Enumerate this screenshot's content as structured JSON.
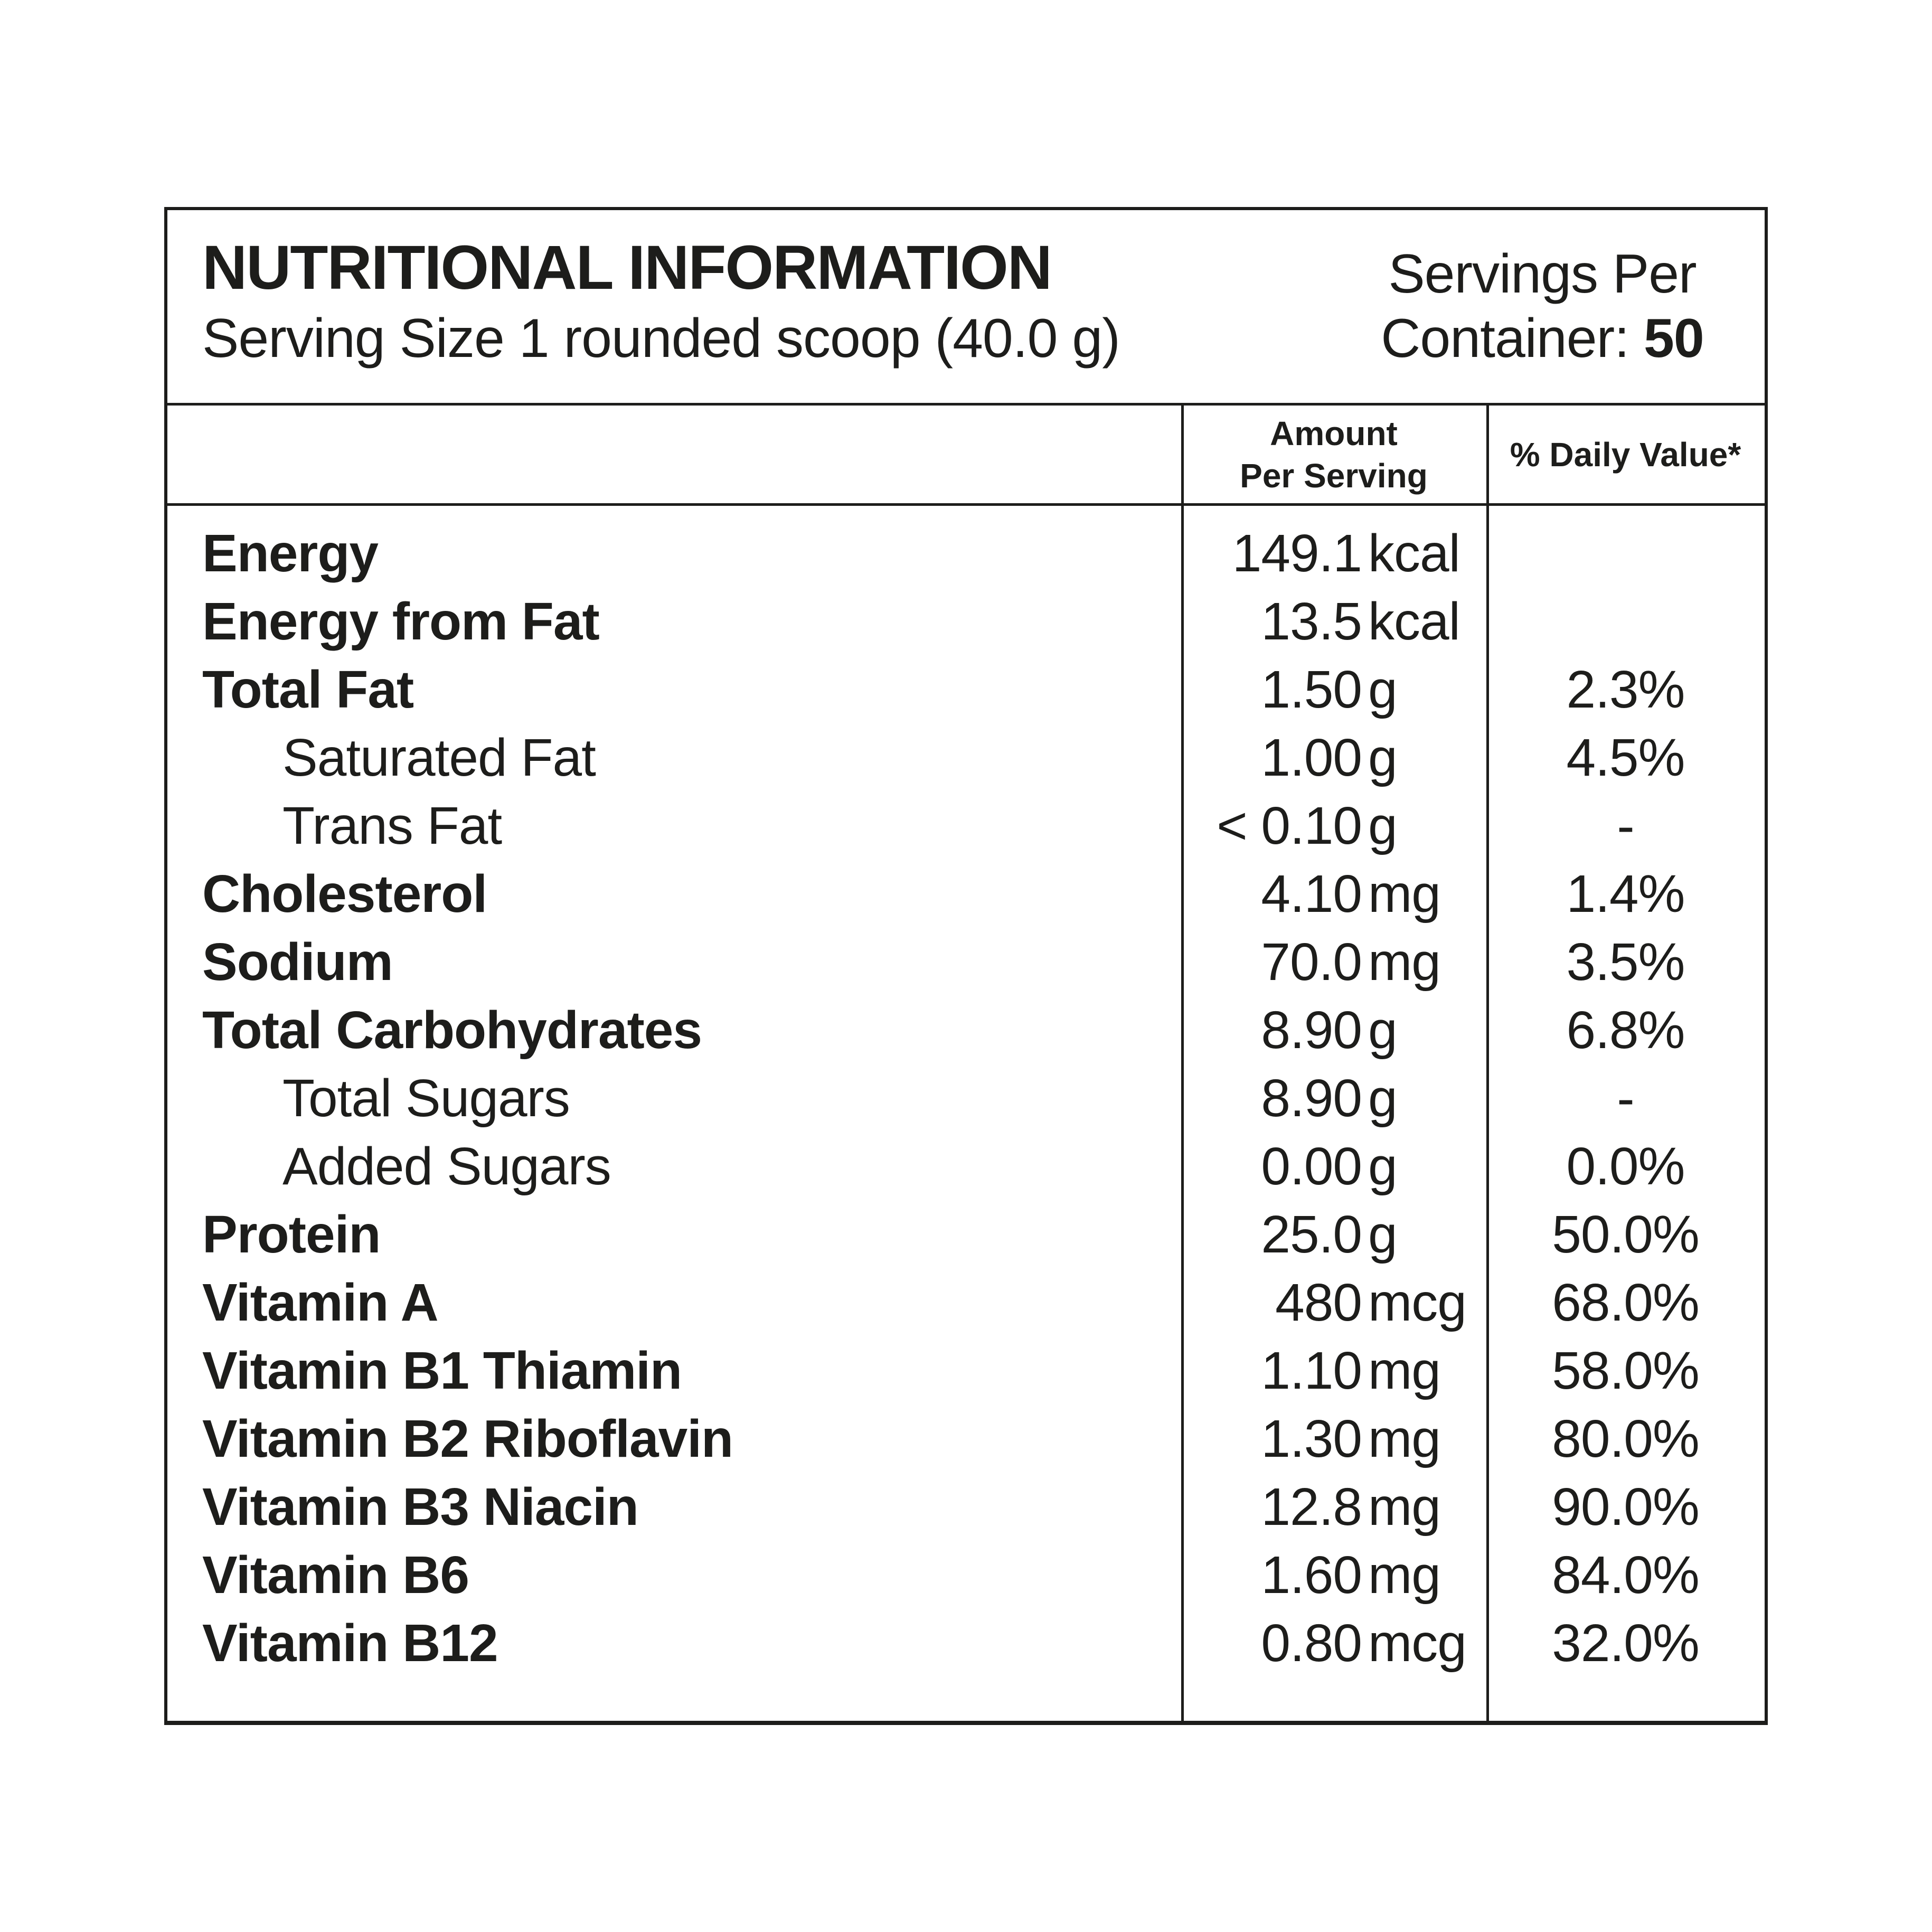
{
  "colors": {
    "text": "#1d1d1b",
    "border": "#1d1d1b",
    "background": "#ffffff"
  },
  "header": {
    "title": "NUTRITIONAL INFORMATION",
    "serving_size": "Serving Size 1 rounded scoop (40.0 g)",
    "servings_per_line1": "Servings Per",
    "servings_per_line2_prefix": "Container: ",
    "servings_count": "50"
  },
  "columns": {
    "amount_line1": "Amount",
    "amount_line2": "Per Serving",
    "daily_value": "% Daily Value*"
  },
  "rows": [
    {
      "name": "Energy",
      "bold": true,
      "indent": false,
      "num": "149.1",
      "unit": "kcal",
      "dv": ""
    },
    {
      "name": "Energy from Fat",
      "bold": true,
      "indent": false,
      "num": "13.5",
      "unit": "kcal",
      "dv": ""
    },
    {
      "name": "Total Fat",
      "bold": true,
      "indent": false,
      "num": "1.50",
      "unit": "g",
      "dv": "2.3%"
    },
    {
      "name": "Saturated Fat",
      "bold": false,
      "indent": true,
      "num": "1.00",
      "unit": "g",
      "dv": "4.5%"
    },
    {
      "name": "Trans Fat",
      "bold": false,
      "indent": true,
      "num": "< 0.10",
      "unit": "g",
      "dv": "-"
    },
    {
      "name": "Cholesterol",
      "bold": true,
      "indent": false,
      "num": "4.10",
      "unit": "mg",
      "dv": "1.4%"
    },
    {
      "name": "Sodium",
      "bold": true,
      "indent": false,
      "num": "70.0",
      "unit": "mg",
      "dv": "3.5%"
    },
    {
      "name": "Total Carbohydrates",
      "bold": true,
      "indent": false,
      "num": "8.90",
      "unit": "g",
      "dv": "6.8%"
    },
    {
      "name": "Total Sugars",
      "bold": false,
      "indent": true,
      "num": "8.90",
      "unit": "g",
      "dv": "-"
    },
    {
      "name": "Added Sugars",
      "bold": false,
      "indent": true,
      "num": "0.00",
      "unit": "g",
      "dv": "0.0%"
    },
    {
      "name": "Protein",
      "bold": true,
      "indent": false,
      "num": "25.0",
      "unit": "g",
      "dv": "50.0%"
    },
    {
      "name": "Vitamin A",
      "bold": true,
      "indent": false,
      "num": "480",
      "unit": "mcg",
      "dv": "68.0%"
    },
    {
      "name": "Vitamin B1 Thiamin",
      "bold": true,
      "indent": false,
      "num": "1.10",
      "unit": "mg",
      "dv": "58.0%"
    },
    {
      "name": "Vitamin B2 Riboflavin",
      "bold": true,
      "indent": false,
      "num": "1.30",
      "unit": "mg",
      "dv": "80.0%"
    },
    {
      "name": "Vitamin B3 Niacin",
      "bold": true,
      "indent": false,
      "num": "12.8",
      "unit": "mg",
      "dv": "90.0%"
    },
    {
      "name": "Vitamin B6",
      "bold": true,
      "indent": false,
      "num": "1.60",
      "unit": "mg",
      "dv": "84.0%"
    },
    {
      "name": "Vitamin B12",
      "bold": true,
      "indent": false,
      "num": "0.80",
      "unit": "mcg",
      "dv": "32.0%"
    }
  ]
}
